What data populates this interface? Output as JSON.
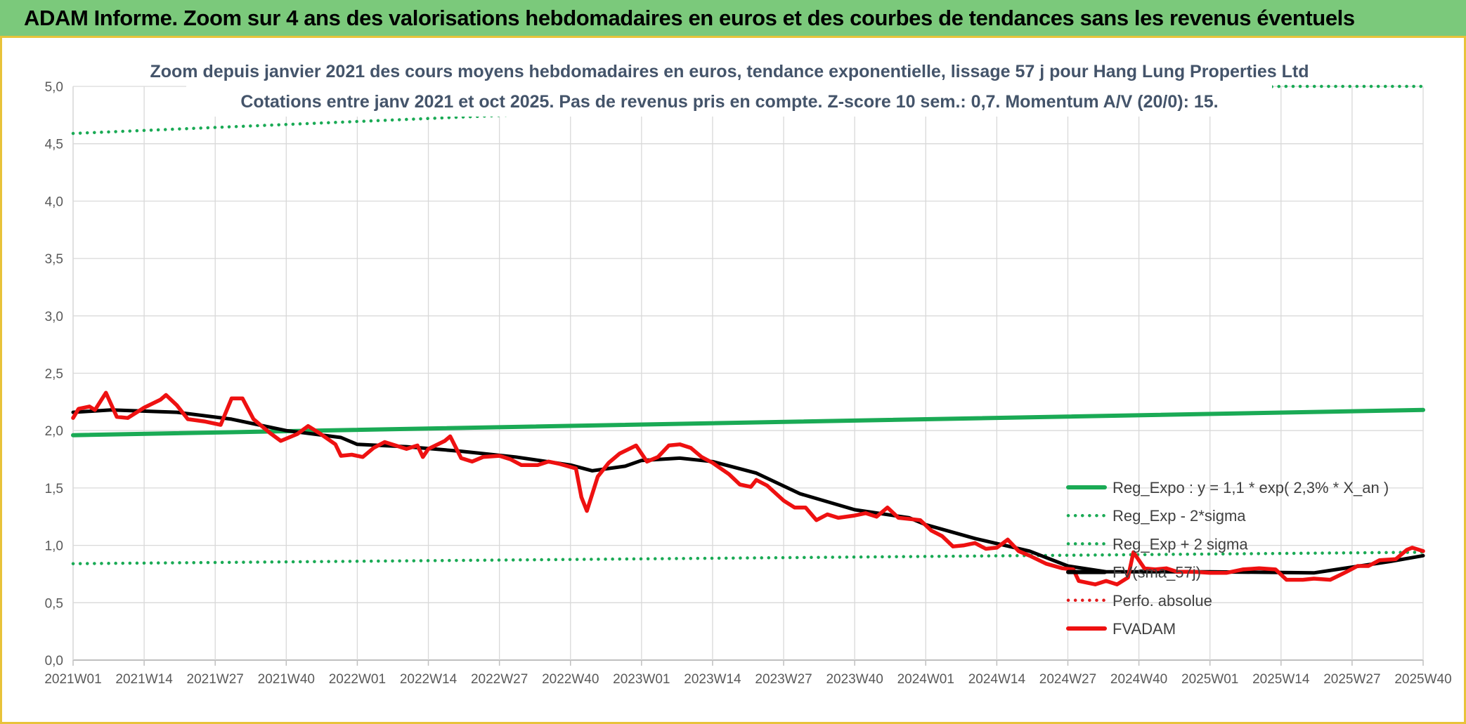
{
  "header": {
    "title": "ADAM Informe. Zoom sur 4 ans des valorisations hebdomadaires en euros et des courbes de tendances sans les revenus éventuels"
  },
  "chart_data": {
    "type": "line",
    "title_line1": "Zoom depuis janvier 2021 des cours moyens hebdomadaires en euros, tendance exponentielle, lissage 57 j pour Hang Lung Properties Ltd",
    "title_line2": "Cotations entre janv 2021 et oct 2025. Pas de revenus pris en compte. Z-score 10 sem.: 0,7. Momentum A/V (20/0): 15.",
    "ylim": [
      0,
      5
    ],
    "y_ticks": [
      "0,0",
      "0,5",
      "1,0",
      "1,5",
      "2,0",
      "2,5",
      "3,0",
      "3,5",
      "4,0",
      "4,5",
      "5,0"
    ],
    "x_tick_labels": [
      "2021W01",
      "2021W14",
      "2021W27",
      "2021W40",
      "2022W01",
      "2022W14",
      "2022W27",
      "2022W40",
      "2023W01",
      "2023W14",
      "2023W27",
      "2023W40",
      "2024W01",
      "2024W14",
      "2024W27",
      "2024W40",
      "2025W01",
      "2025W14",
      "2025W27",
      "2025W40"
    ],
    "grid": true,
    "legend_position": "right",
    "series": [
      {
        "name": "Reg_Expo : y = 1,1 * exp( 2,3% *  X_an )",
        "style": "solid",
        "color": "#1aaa55",
        "points": [
          [
            "2021W01",
            1.96
          ],
          [
            "2025W40",
            2.18
          ]
        ]
      },
      {
        "name": "Reg_Exp - 2*sigma",
        "style": "dotted",
        "color": "#1aaa55",
        "points": [
          [
            "2021W01",
            0.84
          ],
          [
            "2025W40",
            0.94
          ]
        ]
      },
      {
        "name": "Reg_Exp + 2 sigma",
        "style": "dotted",
        "color": "#1aaa55",
        "points": [
          [
            "2021W01",
            4.59
          ],
          [
            "2022W34",
            4.76
          ],
          [
            "2025W14",
            5.0
          ],
          [
            "2025W40",
            5.0
          ]
        ]
      },
      {
        "name": "FV(sma_57j)",
        "style": "solid",
        "color": "#000000",
        "points": [
          [
            "2021W01",
            2.16
          ],
          [
            "2021W08",
            2.18
          ],
          [
            "2021W20",
            2.16
          ],
          [
            "2021W30",
            2.1
          ],
          [
            "2021W40",
            2.0
          ],
          [
            "2021W50",
            1.94
          ],
          [
            "2022W01",
            1.88
          ],
          [
            "2022W10",
            1.86
          ],
          [
            "2022W20",
            1.82
          ],
          [
            "2022W30",
            1.77
          ],
          [
            "2022W40",
            1.7
          ],
          [
            "2022W44",
            1.65
          ],
          [
            "2022W50",
            1.69
          ],
          [
            "2023W01",
            1.74
          ],
          [
            "2023W08",
            1.76
          ],
          [
            "2023W14",
            1.73
          ],
          [
            "2023W22",
            1.63
          ],
          [
            "2023W30",
            1.45
          ],
          [
            "2023W40",
            1.31
          ],
          [
            "2023W50",
            1.24
          ],
          [
            "2024W01",
            1.18
          ],
          [
            "2024W10",
            1.06
          ],
          [
            "2024W20",
            0.95
          ],
          [
            "2024W27",
            0.82
          ],
          [
            "2024W34",
            0.77
          ],
          [
            "2024W45",
            0.77
          ],
          [
            "2025W01",
            0.77
          ],
          [
            "2025W20",
            0.76
          ],
          [
            "2025W27",
            0.81
          ],
          [
            "2025W34",
            0.86
          ],
          [
            "2025W40",
            0.91
          ]
        ]
      },
      {
        "name": "Perfo. absolue",
        "style": "dotted",
        "color": "#e31a1c",
        "points": []
      },
      {
        "name": "FVADAM",
        "style": "solid",
        "color": "#ee1111",
        "points": [
          [
            "2021W01",
            2.11
          ],
          [
            "2021W02",
            2.19
          ],
          [
            "2021W04",
            2.21
          ],
          [
            "2021W05",
            2.18
          ],
          [
            "2021W07",
            2.33
          ],
          [
            "2021W09",
            2.12
          ],
          [
            "2021W11",
            2.11
          ],
          [
            "2021W14",
            2.2
          ],
          [
            "2021W17",
            2.27
          ],
          [
            "2021W18",
            2.31
          ],
          [
            "2021W20",
            2.22
          ],
          [
            "2021W22",
            2.1
          ],
          [
            "2021W25",
            2.08
          ],
          [
            "2021W28",
            2.05
          ],
          [
            "2021W30",
            2.28
          ],
          [
            "2021W32",
            2.28
          ],
          [
            "2021W34",
            2.1
          ],
          [
            "2021W37",
            1.98
          ],
          [
            "2021W39",
            1.91
          ],
          [
            "2021W42",
            1.97
          ],
          [
            "2021W44",
            2.04
          ],
          [
            "2021W46",
            1.98
          ],
          [
            "2021W49",
            1.88
          ],
          [
            "2021W50",
            1.78
          ],
          [
            "2021W52",
            1.79
          ],
          [
            "2022W02",
            1.77
          ],
          [
            "2022W04",
            1.85
          ],
          [
            "2022W06",
            1.9
          ],
          [
            "2022W08",
            1.87
          ],
          [
            "2022W10",
            1.84
          ],
          [
            "2022W12",
            1.87
          ],
          [
            "2022W13",
            1.77
          ],
          [
            "2022W14",
            1.84
          ],
          [
            "2022W17",
            1.91
          ],
          [
            "2022W18",
            1.95
          ],
          [
            "2022W20",
            1.76
          ],
          [
            "2022W22",
            1.73
          ],
          [
            "2022W24",
            1.77
          ],
          [
            "2022W27",
            1.78
          ],
          [
            "2022W29",
            1.75
          ],
          [
            "2022W31",
            1.7
          ],
          [
            "2022W34",
            1.7
          ],
          [
            "2022W36",
            1.73
          ],
          [
            "2022W38",
            1.71
          ],
          [
            "2022W41",
            1.67
          ],
          [
            "2022W42",
            1.42
          ],
          [
            "2022W43",
            1.3
          ],
          [
            "2022W45",
            1.6
          ],
          [
            "2022W47",
            1.72
          ],
          [
            "2022W49",
            1.8
          ],
          [
            "2022W52",
            1.87
          ],
          [
            "2023W02",
            1.73
          ],
          [
            "2023W04",
            1.77
          ],
          [
            "2023W06",
            1.87
          ],
          [
            "2023W08",
            1.88
          ],
          [
            "2023W10",
            1.85
          ],
          [
            "2023W12",
            1.77
          ],
          [
            "2023W14",
            1.72
          ],
          [
            "2023W17",
            1.62
          ],
          [
            "2023W19",
            1.53
          ],
          [
            "2023W21",
            1.51
          ],
          [
            "2023W22",
            1.57
          ],
          [
            "2023W24",
            1.52
          ],
          [
            "2023W27",
            1.39
          ],
          [
            "2023W29",
            1.33
          ],
          [
            "2023W31",
            1.33
          ],
          [
            "2023W33",
            1.22
          ],
          [
            "2023W35",
            1.27
          ],
          [
            "2023W37",
            1.24
          ],
          [
            "2023W40",
            1.26
          ],
          [
            "2023W42",
            1.28
          ],
          [
            "2023W44",
            1.25
          ],
          [
            "2023W46",
            1.33
          ],
          [
            "2023W48",
            1.24
          ],
          [
            "2023W50",
            1.23
          ],
          [
            "2023W52",
            1.22
          ],
          [
            "2024W02",
            1.13
          ],
          [
            "2024W04",
            1.08
          ],
          [
            "2024W06",
            0.99
          ],
          [
            "2024W08",
            1.0
          ],
          [
            "2024W10",
            1.02
          ],
          [
            "2024W12",
            0.97
          ],
          [
            "2024W14",
            0.98
          ],
          [
            "2024W16",
            1.05
          ],
          [
            "2024W18",
            0.95
          ],
          [
            "2024W20",
            0.91
          ],
          [
            "2024W23",
            0.84
          ],
          [
            "2024W26",
            0.8
          ],
          [
            "2024W28",
            0.79
          ],
          [
            "2024W29",
            0.69
          ],
          [
            "2024W32",
            0.66
          ],
          [
            "2024W34",
            0.69
          ],
          [
            "2024W36",
            0.66
          ],
          [
            "2024W38",
            0.72
          ],
          [
            "2024W39",
            0.94
          ],
          [
            "2024W41",
            0.8
          ],
          [
            "2024W43",
            0.79
          ],
          [
            "2024W45",
            0.8
          ],
          [
            "2024W47",
            0.77
          ],
          [
            "2024W50",
            0.77
          ],
          [
            "2025W01",
            0.76
          ],
          [
            "2025W04",
            0.76
          ],
          [
            "2025W07",
            0.79
          ],
          [
            "2025W10",
            0.8
          ],
          [
            "2025W13",
            0.79
          ],
          [
            "2025W15",
            0.7
          ],
          [
            "2025W18",
            0.7
          ],
          [
            "2025W20",
            0.71
          ],
          [
            "2025W23",
            0.7
          ],
          [
            "2025W26",
            0.77
          ],
          [
            "2025W28",
            0.82
          ],
          [
            "2025W30",
            0.82
          ],
          [
            "2025W32",
            0.87
          ],
          [
            "2025W35",
            0.88
          ],
          [
            "2025W37",
            0.96
          ],
          [
            "2025W38",
            0.98
          ],
          [
            "2025W40",
            0.95
          ]
        ]
      }
    ]
  }
}
